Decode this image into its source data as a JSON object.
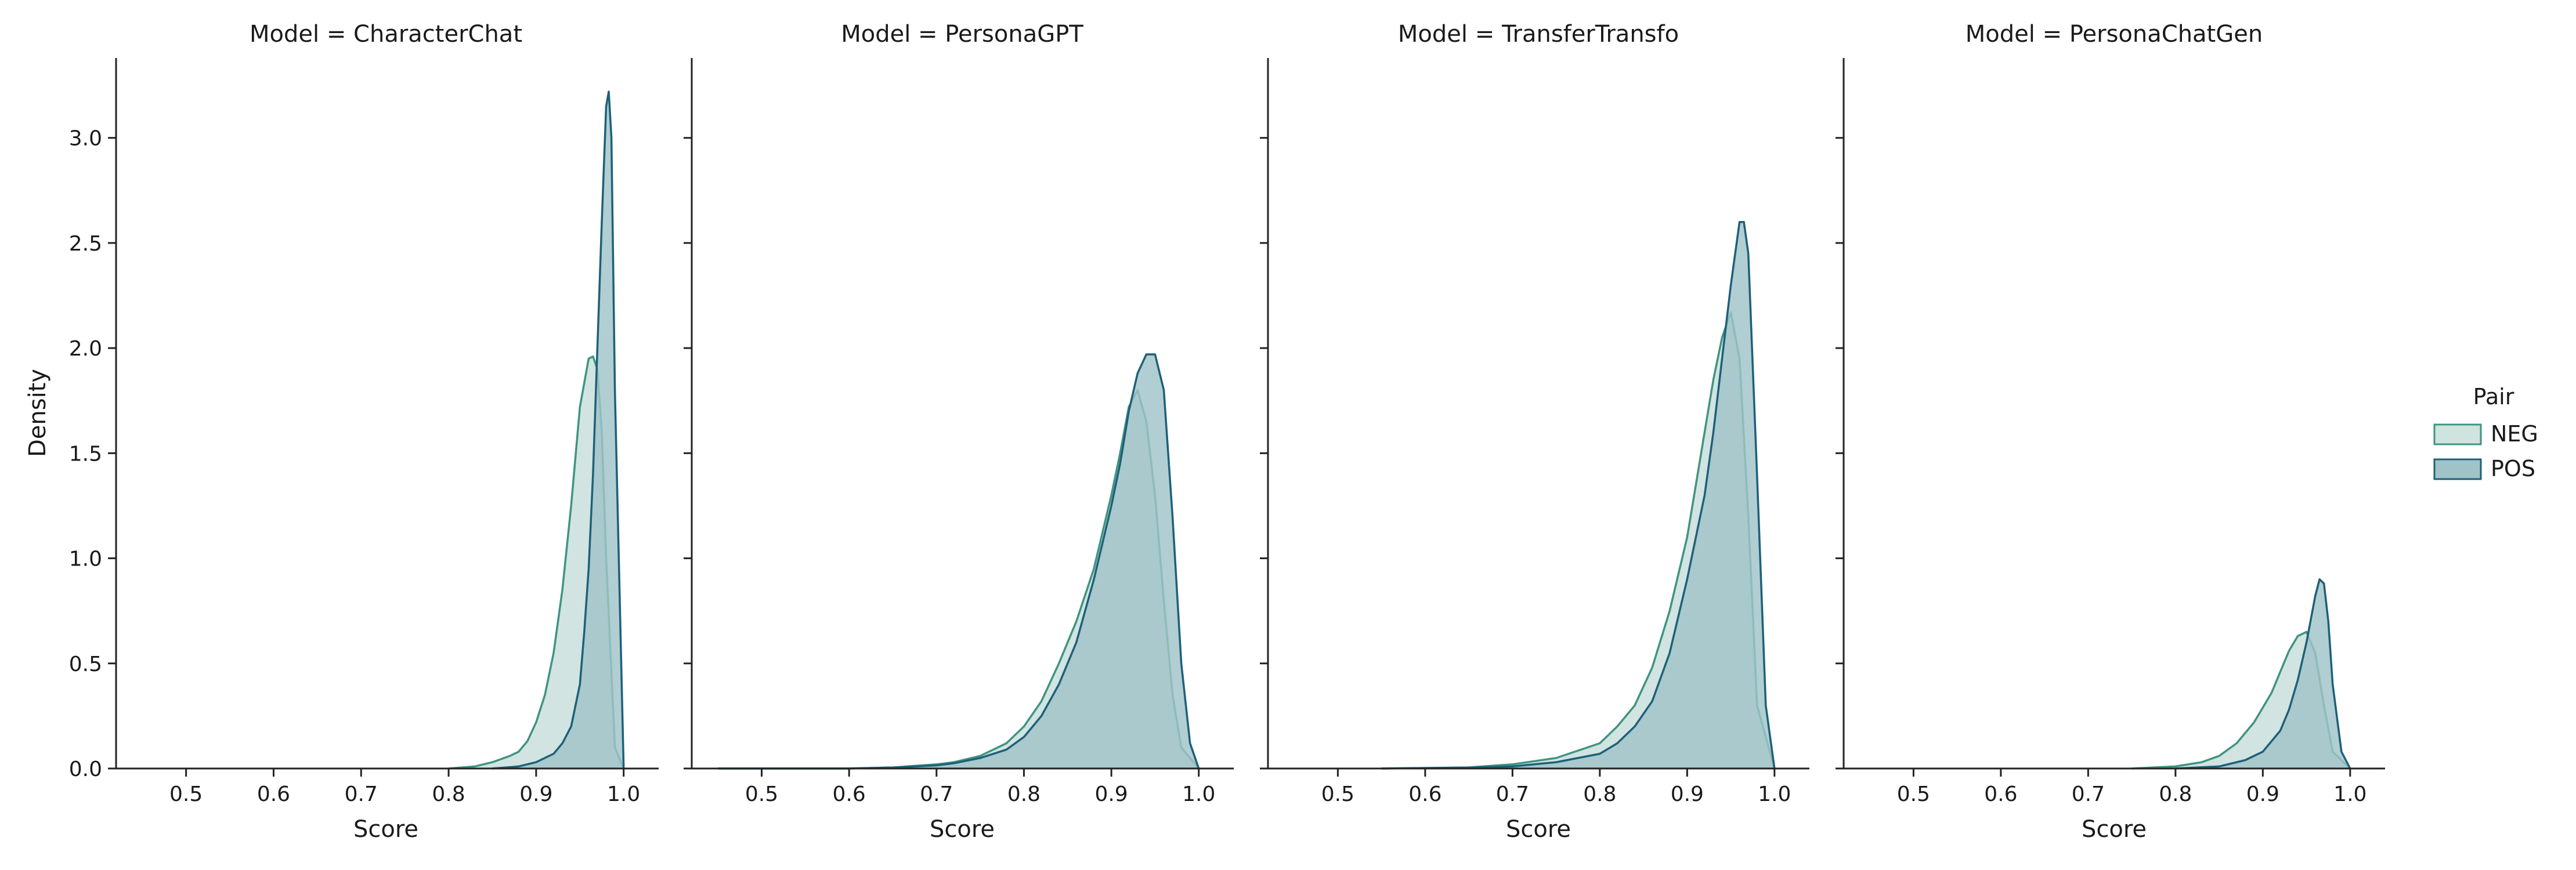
{
  "chart_data": [
    {
      "type": "area",
      "title": "Model = CharacterChat",
      "xlabel": "Score",
      "ylabel": "Density",
      "xlim": [
        0.42,
        1.04
      ],
      "ylim": [
        0,
        3.38
      ],
      "x_ticks": [
        "0.5",
        "0.6",
        "0.7",
        "0.8",
        "0.9",
        "1.0"
      ],
      "y_ticks": [
        "0.0",
        "0.5",
        "1.0",
        "1.5",
        "2.0",
        "2.5",
        "3.0"
      ],
      "series": [
        {
          "name": "NEG",
          "x": [
            0.8,
            0.83,
            0.85,
            0.87,
            0.88,
            0.89,
            0.9,
            0.91,
            0.92,
            0.93,
            0.94,
            0.95,
            0.96,
            0.965,
            0.97,
            0.975,
            0.98,
            0.99,
            1.0
          ],
          "y": [
            0.0,
            0.01,
            0.03,
            0.06,
            0.08,
            0.13,
            0.22,
            0.35,
            0.55,
            0.85,
            1.25,
            1.72,
            1.95,
            1.96,
            1.9,
            1.6,
            1.0,
            0.1,
            0.0
          ]
        },
        {
          "name": "POS",
          "x": [
            0.85,
            0.88,
            0.9,
            0.92,
            0.93,
            0.94,
            0.95,
            0.955,
            0.96,
            0.965,
            0.97,
            0.975,
            0.98,
            0.983,
            0.986,
            0.99,
            1.0
          ],
          "y": [
            0.0,
            0.01,
            0.03,
            0.07,
            0.12,
            0.2,
            0.4,
            0.65,
            0.95,
            1.4,
            2.0,
            2.6,
            3.15,
            3.22,
            3.0,
            1.8,
            0.0
          ]
        }
      ]
    },
    {
      "type": "area",
      "title": "Model = PersonaGPT",
      "xlabel": "Score",
      "xlim": [
        0.42,
        1.04
      ],
      "ylim": [
        0,
        3.38
      ],
      "x_ticks": [
        "0.5",
        "0.6",
        "0.7",
        "0.8",
        "0.9",
        "1.0"
      ],
      "series": [
        {
          "name": "NEG",
          "x": [
            0.45,
            0.6,
            0.65,
            0.7,
            0.72,
            0.75,
            0.78,
            0.8,
            0.82,
            0.84,
            0.86,
            0.88,
            0.9,
            0.91,
            0.92,
            0.93,
            0.94,
            0.95,
            0.96,
            0.97,
            0.98,
            1.0
          ],
          "y": [
            0.0,
            0.0,
            0.005,
            0.02,
            0.03,
            0.06,
            0.12,
            0.2,
            0.32,
            0.5,
            0.7,
            0.95,
            1.3,
            1.5,
            1.72,
            1.8,
            1.65,
            1.3,
            0.8,
            0.35,
            0.1,
            0.0
          ]
        },
        {
          "name": "POS",
          "x": [
            0.45,
            0.6,
            0.65,
            0.7,
            0.72,
            0.75,
            0.78,
            0.8,
            0.82,
            0.84,
            0.86,
            0.88,
            0.9,
            0.91,
            0.92,
            0.93,
            0.94,
            0.95,
            0.96,
            0.97,
            0.98,
            0.99,
            1.0
          ],
          "y": [
            0.0,
            0.0,
            0.005,
            0.015,
            0.025,
            0.05,
            0.09,
            0.15,
            0.25,
            0.4,
            0.6,
            0.9,
            1.25,
            1.45,
            1.7,
            1.88,
            1.97,
            1.97,
            1.8,
            1.2,
            0.5,
            0.12,
            0.0
          ]
        }
      ]
    },
    {
      "type": "area",
      "title": "Model = TransferTransfo",
      "xlabel": "Score",
      "xlim": [
        0.42,
        1.04
      ],
      "ylim": [
        0,
        3.38
      ],
      "x_ticks": [
        "0.5",
        "0.6",
        "0.7",
        "0.8",
        "0.9",
        "1.0"
      ],
      "series": [
        {
          "name": "NEG",
          "x": [
            0.55,
            0.65,
            0.7,
            0.75,
            0.8,
            0.82,
            0.84,
            0.86,
            0.88,
            0.9,
            0.91,
            0.92,
            0.93,
            0.94,
            0.95,
            0.96,
            0.97,
            0.98,
            1.0
          ],
          "y": [
            0.0,
            0.005,
            0.02,
            0.05,
            0.12,
            0.2,
            0.3,
            0.48,
            0.75,
            1.1,
            1.35,
            1.6,
            1.85,
            2.05,
            2.17,
            1.95,
            1.2,
            0.3,
            0.0
          ]
        },
        {
          "name": "POS",
          "x": [
            0.55,
            0.65,
            0.7,
            0.75,
            0.8,
            0.82,
            0.84,
            0.86,
            0.88,
            0.9,
            0.92,
            0.93,
            0.94,
            0.95,
            0.96,
            0.965,
            0.97,
            0.98,
            0.99,
            1.0
          ],
          "y": [
            0.0,
            0.005,
            0.01,
            0.03,
            0.07,
            0.12,
            0.2,
            0.32,
            0.55,
            0.9,
            1.3,
            1.6,
            1.95,
            2.3,
            2.6,
            2.6,
            2.45,
            1.4,
            0.3,
            0.0
          ]
        }
      ]
    },
    {
      "type": "area",
      "title": "Model = PersonaChatGen",
      "xlabel": "Score",
      "xlim": [
        0.42,
        1.04
      ],
      "ylim": [
        0,
        3.38
      ],
      "x_ticks": [
        "0.5",
        "0.6",
        "0.7",
        "0.8",
        "0.9",
        "1.0"
      ],
      "series": [
        {
          "name": "NEG",
          "x": [
            0.75,
            0.8,
            0.83,
            0.85,
            0.87,
            0.89,
            0.91,
            0.92,
            0.93,
            0.94,
            0.95,
            0.96,
            0.97,
            0.98,
            1.0
          ],
          "y": [
            0.0,
            0.01,
            0.03,
            0.06,
            0.12,
            0.22,
            0.36,
            0.46,
            0.56,
            0.63,
            0.65,
            0.55,
            0.3,
            0.08,
            0.0
          ]
        },
        {
          "name": "POS",
          "x": [
            0.8,
            0.85,
            0.88,
            0.9,
            0.92,
            0.93,
            0.94,
            0.95,
            0.96,
            0.965,
            0.97,
            0.975,
            0.98,
            0.99,
            1.0
          ],
          "y": [
            0.0,
            0.01,
            0.04,
            0.08,
            0.18,
            0.28,
            0.42,
            0.6,
            0.82,
            0.9,
            0.88,
            0.7,
            0.4,
            0.08,
            0.0
          ]
        }
      ]
    }
  ],
  "legend": {
    "title": "Pair",
    "items": [
      "NEG",
      "POS"
    ],
    "placement": "right"
  },
  "colors": {
    "NEG_line": "#3f9480",
    "NEG_fill": "#cfe3df",
    "POS_line": "#1e6079",
    "POS_fill": "#a0c3c8"
  }
}
